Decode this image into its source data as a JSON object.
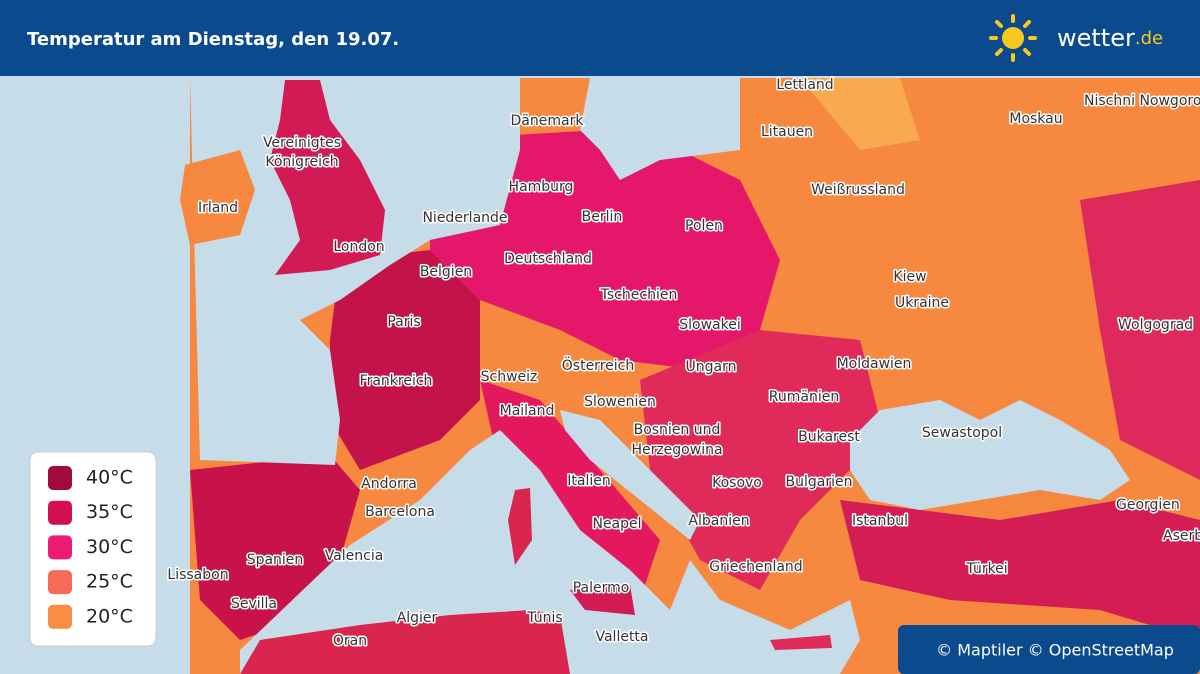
{
  "header": {
    "title": "Temperatur am Dienstag, den 19.07.",
    "logo_main": "wetter",
    "logo_suffix": ".de"
  },
  "places": [
    "Lettland",
    "Nischni Nowgoro",
    "Dänemark",
    "Vereinigtes",
    "Königreich",
    "Litauen",
    "Moskau",
    "Irland",
    "Hamburg",
    "Weißrussland",
    "Niederlande",
    "Berlin",
    "London",
    "Polen",
    "Deutschland",
    "Belgien",
    "Kiew",
    "Ukraine",
    "Tschechien",
    "Paris",
    "Slowakei",
    "Wolgograd",
    "Moldawien",
    "Schweiz",
    "Österreich",
    "Ungarn",
    "Frankreich",
    "Mailand",
    "Slowenien",
    "Rumänien",
    "Sewastopol",
    "Bosnien und",
    "Herzegowina",
    "Bukarest",
    "Andorra",
    "Italien",
    "Kosovo",
    "Bulgarien",
    "Georgien",
    "Barcelona",
    "Neapel",
    "Albanien",
    "Istanbul",
    "Valencia",
    "Spanien",
    "Griechenland",
    "Türkei",
    "Lissabon",
    "Sevilla",
    "Palermo",
    "Algier",
    "Tunis",
    "Oran",
    "Valletta",
    "Aserb"
  ],
  "legend": [
    {
      "label": "40°C",
      "color": "#a10a3c"
    },
    {
      "label": "35°C",
      "color": "#d10f52"
    },
    {
      "label": "30°C",
      "color": "#ee1a74"
    },
    {
      "label": "25°C",
      "color": "#f66a57"
    },
    {
      "label": "20°C",
      "color": "#f98d45"
    }
  ],
  "attribution": "© Maptiler © OpenStreetMap"
}
